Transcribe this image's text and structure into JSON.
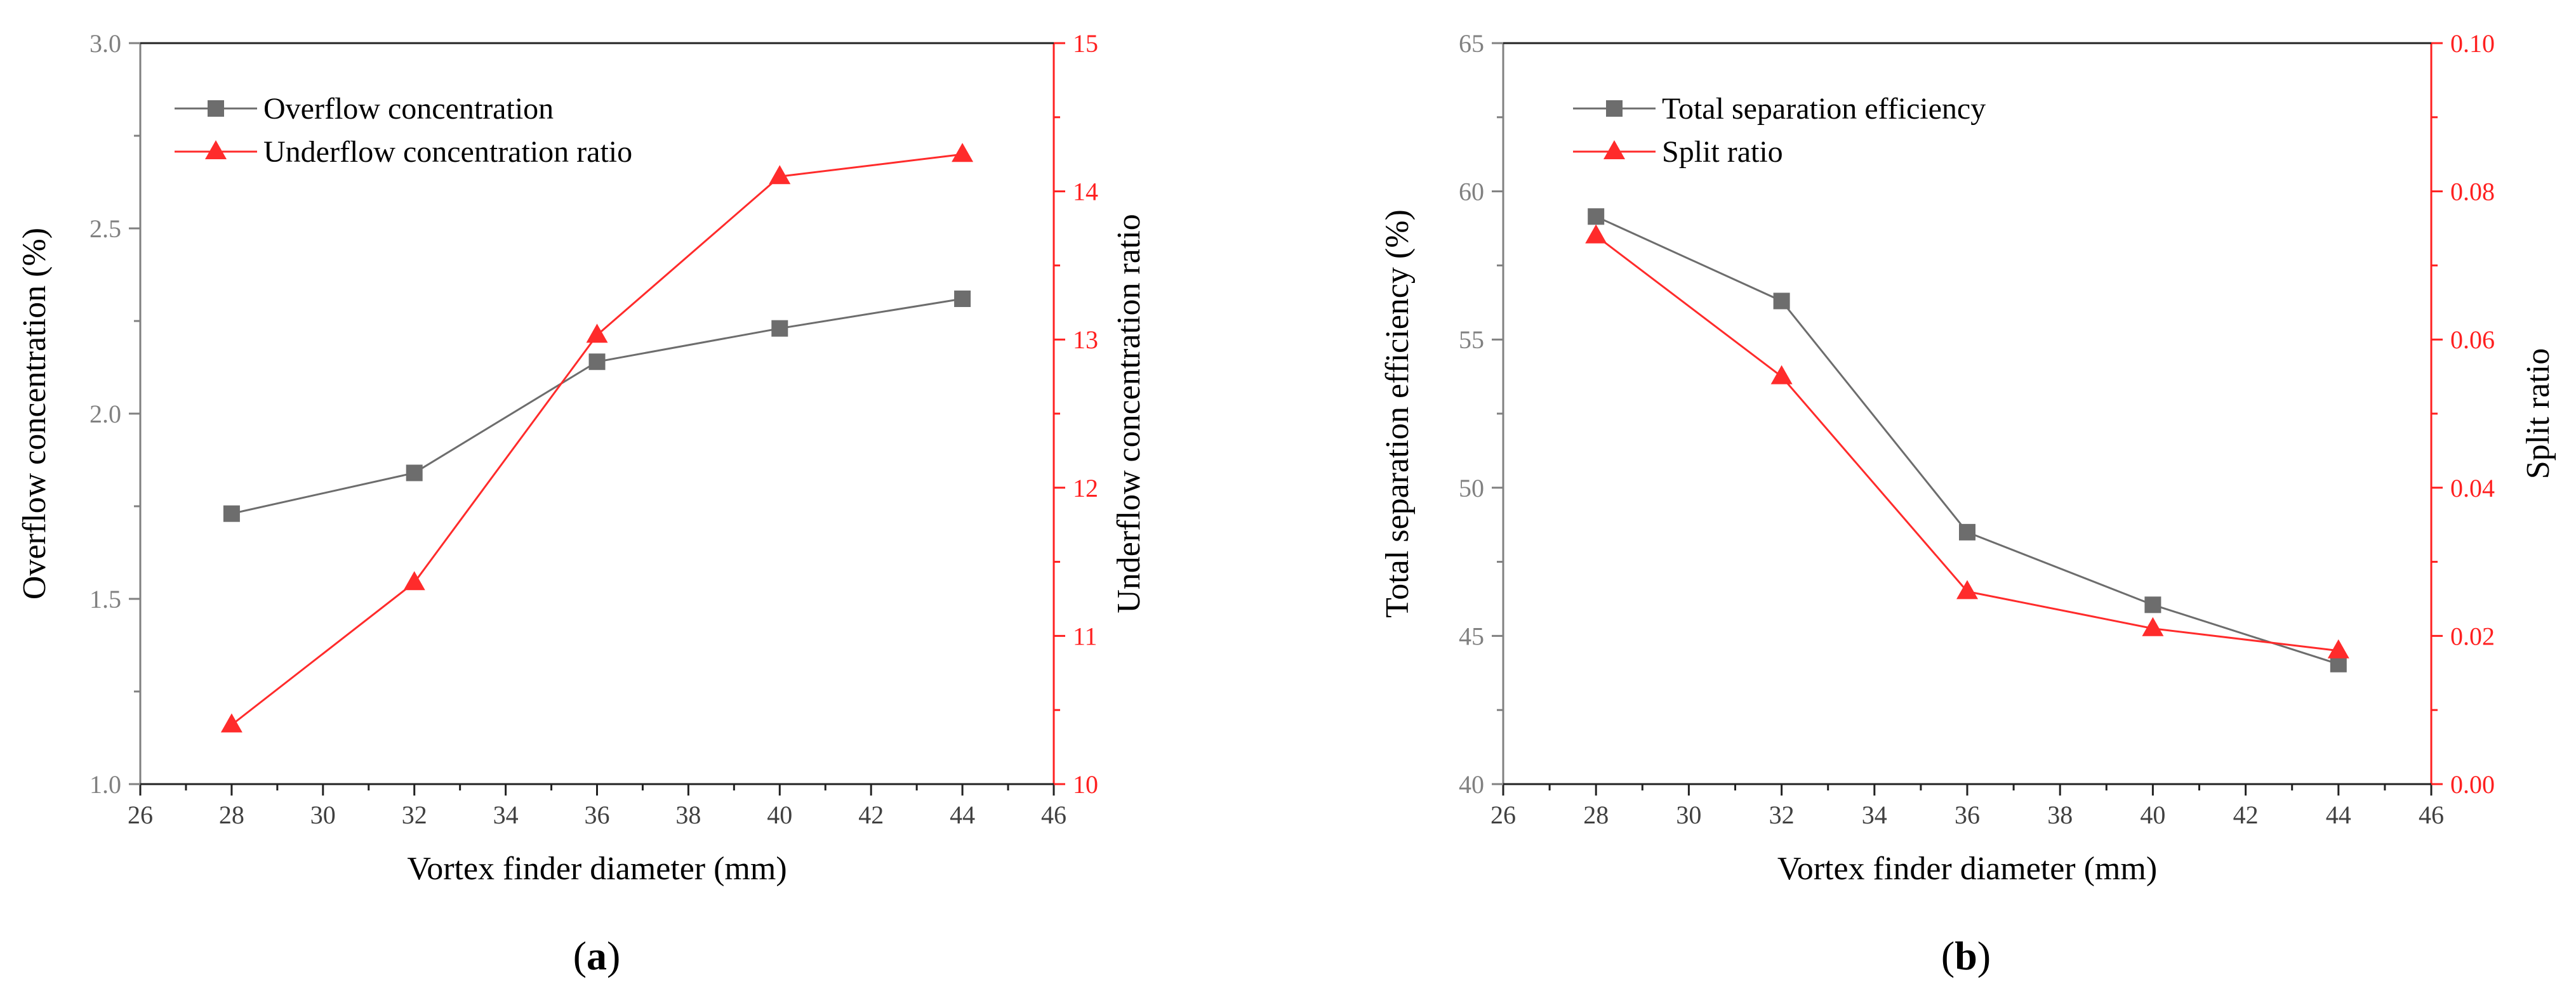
{
  "colors": {
    "gray": "#6d6d6d",
    "red": "#ff2b2b",
    "axis_gray": "#808080",
    "axis_red": "#ff2020"
  },
  "chart_data": [
    {
      "panel": "(a)",
      "panel_letter": "a",
      "type": "line",
      "xlabel": "Vortex finder diameter (mm)",
      "xlim": [
        26,
        46
      ],
      "xticks": [
        26,
        28,
        30,
        32,
        34,
        36,
        38,
        40,
        42,
        44,
        46
      ],
      "ylabel_left": "Overflow concentration (%)",
      "ylim_left": [
        1.0,
        3.0
      ],
      "yticks_left": [
        "1.0",
        "1.5",
        "2.0",
        "2.5",
        "3.0"
      ],
      "ylabel_right": "Underflow concentration ratio",
      "ylim_right": [
        10,
        15
      ],
      "yticks_right": [
        "10",
        "11",
        "12",
        "13",
        "14",
        "15"
      ],
      "legend_position": "top-left",
      "series": [
        {
          "name": "Overflow concentration",
          "axis": "left",
          "marker": "square",
          "color": "#6d6d6d",
          "x": [
            28,
            32,
            36,
            40,
            44
          ],
          "values": [
            1.73,
            1.84,
            2.14,
            2.23,
            2.31
          ]
        },
        {
          "name": "Underflow concentration ratio",
          "axis": "right",
          "marker": "triangle",
          "color": "#ff2b2b",
          "x": [
            28,
            32,
            36,
            40,
            44
          ],
          "values": [
            10.4,
            11.36,
            13.03,
            14.1,
            14.25
          ]
        }
      ]
    },
    {
      "panel": "(b)",
      "panel_letter": "b",
      "type": "line",
      "xlabel": "Vortex finder diameter (mm)",
      "xlim": [
        26,
        46
      ],
      "xticks": [
        26,
        28,
        30,
        32,
        34,
        36,
        38,
        40,
        42,
        44,
        46
      ],
      "ylabel_left": "Total separation efficiency (%)",
      "ylim_left": [
        40,
        65
      ],
      "yticks_left": [
        "40",
        "45",
        "50",
        "55",
        "60",
        "65"
      ],
      "ylabel_right": "Split ratio",
      "ylim_right": [
        0.0,
        0.1
      ],
      "yticks_right": [
        "0.00",
        "0.02",
        "0.04",
        "0.06",
        "0.08",
        "0.10"
      ],
      "legend_position": "top-left",
      "series": [
        {
          "name": "Total separation efficiency",
          "axis": "left",
          "marker": "square",
          "color": "#6d6d6d",
          "x": [
            28,
            32,
            36,
            40,
            44
          ],
          "values": [
            59.15,
            56.3,
            48.5,
            46.05,
            44.05
          ]
        },
        {
          "name": "Split ratio",
          "axis": "right",
          "marker": "triangle",
          "color": "#ff2b2b",
          "x": [
            28,
            32,
            36,
            40,
            44
          ],
          "values": [
            0.074,
            0.055,
            0.026,
            0.021,
            0.018
          ]
        }
      ]
    }
  ]
}
